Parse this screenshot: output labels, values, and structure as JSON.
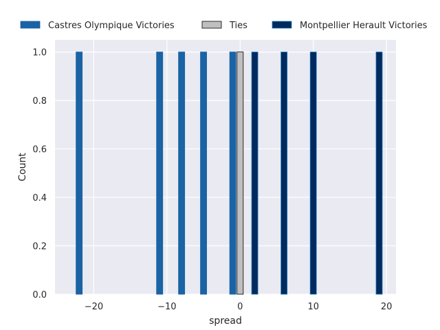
{
  "chart_data": {
    "type": "bar",
    "xlabel": "spread",
    "ylabel": "Count",
    "xlim": [
      -25.3,
      21.3
    ],
    "ylim": [
      0,
      1.05
    ],
    "x_ticks": [
      -20,
      -10,
      0,
      10,
      20
    ],
    "y_ticks": [
      0.0,
      0.2,
      0.4,
      0.6,
      0.8,
      1.0
    ],
    "x_tick_labels": [
      "−20",
      "−10",
      "0",
      "10",
      "20"
    ],
    "y_tick_labels": [
      "0.0",
      "0.2",
      "0.4",
      "0.6",
      "0.8",
      "1.0"
    ],
    "grid": true,
    "legend_position": "top",
    "series": [
      {
        "name": "Castres Olympique Victories",
        "color": "#1a63a5",
        "edge": "#1a63a5",
        "points": [
          {
            "x": -22,
            "y": 1
          },
          {
            "x": -11,
            "y": 1
          },
          {
            "x": -8,
            "y": 1
          },
          {
            "x": -5,
            "y": 1
          },
          {
            "x": -1,
            "y": 1
          }
        ]
      },
      {
        "name": "Ties",
        "color": "#bfbfbf",
        "edge": "#000000",
        "points": [
          {
            "x": 0,
            "y": 1
          }
        ]
      },
      {
        "name": "Montpellier Herault Victories",
        "color": "#012a5e",
        "edge": "#1f7fbf",
        "points": [
          {
            "x": 2,
            "y": 1
          },
          {
            "x": 6,
            "y": 1
          },
          {
            "x": 10,
            "y": 1
          },
          {
            "x": 19,
            "y": 1
          }
        ]
      }
    ]
  }
}
